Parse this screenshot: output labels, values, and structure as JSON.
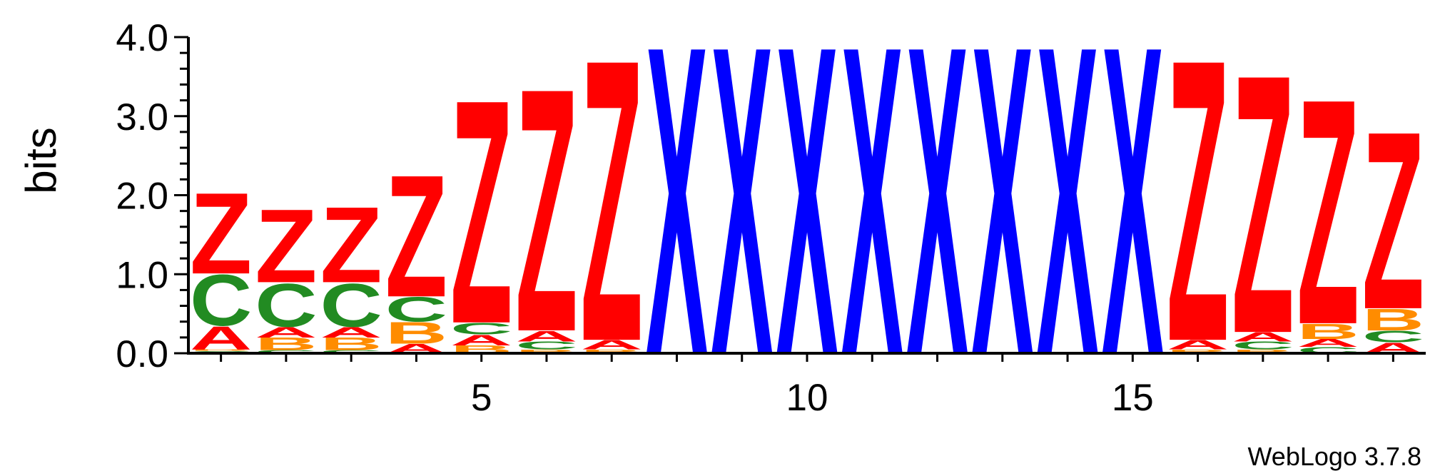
{
  "colors": {
    "A": "#ff0000",
    "B": "#ff8c00",
    "C": "#228b22",
    "X": "#0000ff",
    "Z": "#ff0000",
    "axis": "#000000"
  },
  "chart_data": {
    "type": "sequence-logo",
    "ylabel": "bits",
    "ylim": [
      0,
      4.0
    ],
    "yticks": [
      "0.0",
      "1.0",
      "2.0",
      "3.0",
      "4.0"
    ],
    "xticks": [
      5,
      10,
      15
    ],
    "credit": "WebLogo 3.7.8",
    "positions": [
      {
        "pos": 1,
        "stack": [
          {
            "l": "C",
            "h": 0.03
          },
          {
            "l": "B",
            "h": 0.02
          },
          {
            "l": "A",
            "h": 0.3
          },
          {
            "l": "C",
            "h": 0.66
          },
          {
            "l": "Z",
            "h": 1.05
          }
        ]
      },
      {
        "pos": 2,
        "stack": [
          {
            "l": "C",
            "h": 0.04
          },
          {
            "l": "B",
            "h": 0.16
          },
          {
            "l": "A",
            "h": 0.14
          },
          {
            "l": "C",
            "h": 0.56
          },
          {
            "l": "Z",
            "h": 0.95
          }
        ]
      },
      {
        "pos": 3,
        "stack": [
          {
            "l": "C",
            "h": 0.04
          },
          {
            "l": "B",
            "h": 0.16
          },
          {
            "l": "A",
            "h": 0.14
          },
          {
            "l": "C",
            "h": 0.56
          },
          {
            "l": "Z",
            "h": 0.98
          }
        ]
      },
      {
        "pos": 4,
        "stack": [
          {
            "l": "A",
            "h": 0.12
          },
          {
            "l": "B",
            "h": 0.28
          },
          {
            "l": "C",
            "h": 0.32
          },
          {
            "l": "Z",
            "h": 1.58
          }
        ]
      },
      {
        "pos": 5,
        "stack": [
          {
            "l": "B",
            "h": 0.1
          },
          {
            "l": "A",
            "h": 0.14
          },
          {
            "l": "C",
            "h": 0.15
          },
          {
            "l": "Z",
            "h": 2.9
          }
        ]
      },
      {
        "pos": 6,
        "stack": [
          {
            "l": "B",
            "h": 0.05
          },
          {
            "l": "C",
            "h": 0.1
          },
          {
            "l": "A",
            "h": 0.14
          },
          {
            "l": "Z",
            "h": 3.15
          }
        ]
      },
      {
        "pos": 7,
        "stack": [
          {
            "l": "B",
            "h": 0.05
          },
          {
            "l": "A",
            "h": 0.12
          },
          {
            "l": "Z",
            "h": 3.65
          }
        ]
      },
      {
        "pos": 8,
        "stack": [
          {
            "l": "X",
            "h": 4.0
          }
        ]
      },
      {
        "pos": 9,
        "stack": [
          {
            "l": "X",
            "h": 4.0
          }
        ]
      },
      {
        "pos": 10,
        "stack": [
          {
            "l": "X",
            "h": 4.0
          }
        ]
      },
      {
        "pos": 11,
        "stack": [
          {
            "l": "X",
            "h": 4.0
          }
        ]
      },
      {
        "pos": 12,
        "stack": [
          {
            "l": "X",
            "h": 4.0
          }
        ]
      },
      {
        "pos": 13,
        "stack": [
          {
            "l": "X",
            "h": 4.0
          }
        ]
      },
      {
        "pos": 14,
        "stack": [
          {
            "l": "X",
            "h": 4.0
          }
        ]
      },
      {
        "pos": 15,
        "stack": [
          {
            "l": "X",
            "h": 4.0
          }
        ]
      },
      {
        "pos": 16,
        "stack": [
          {
            "l": "B",
            "h": 0.05
          },
          {
            "l": "A",
            "h": 0.12
          },
          {
            "l": "Z",
            "h": 3.65
          }
        ]
      },
      {
        "pos": 17,
        "stack": [
          {
            "l": "B",
            "h": 0.05
          },
          {
            "l": "C",
            "h": 0.1
          },
          {
            "l": "A",
            "h": 0.12
          },
          {
            "l": "Z",
            "h": 3.35
          }
        ]
      },
      {
        "pos": 18,
        "stack": [
          {
            "l": "C",
            "h": 0.08
          },
          {
            "l": "A",
            "h": 0.1
          },
          {
            "l": "B",
            "h": 0.2
          },
          {
            "l": "Z",
            "h": 2.92
          }
        ]
      },
      {
        "pos": 19,
        "stack": [
          {
            "l": "A",
            "h": 0.14
          },
          {
            "l": "C",
            "h": 0.15
          },
          {
            "l": "B",
            "h": 0.28
          },
          {
            "l": "Z",
            "h": 2.3
          }
        ]
      }
    ]
  }
}
